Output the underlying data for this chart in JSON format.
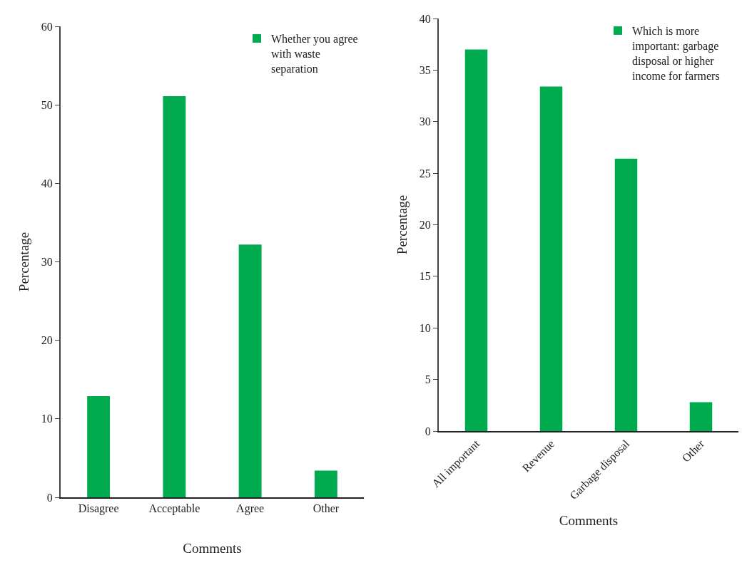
{
  "chart_data": [
    {
      "type": "bar",
      "xlabel": "Comments",
      "ylabel": "Percentage",
      "categories": [
        "Disagree",
        "Acceptable",
        "Agree",
        "Other"
      ],
      "series": [
        {
          "name": "Whether you agree with waste separation",
          "color": "#00aa4f",
          "values": [
            12.9,
            51.1,
            32.2,
            3.4
          ]
        }
      ],
      "ylim": [
        0,
        60
      ],
      "yticks": [
        0,
        10,
        20,
        30,
        40,
        50,
        60
      ],
      "grid": false,
      "legend": "top right"
    },
    {
      "type": "bar",
      "xlabel": "Comments",
      "ylabel": "Percentage",
      "categories": [
        "All important",
        "Revenue",
        "Garbage disposal",
        "Other"
      ],
      "series": [
        {
          "name": "Which is more important: garbage disposal or higher income for farmers",
          "color": "#00aa4f",
          "values": [
            37.0,
            33.4,
            26.4,
            2.8
          ]
        }
      ],
      "ylim": [
        0,
        40
      ],
      "yticks": [
        0,
        5,
        10,
        15,
        20,
        25,
        30,
        35,
        40
      ],
      "grid": false,
      "legend": "top right"
    }
  ]
}
